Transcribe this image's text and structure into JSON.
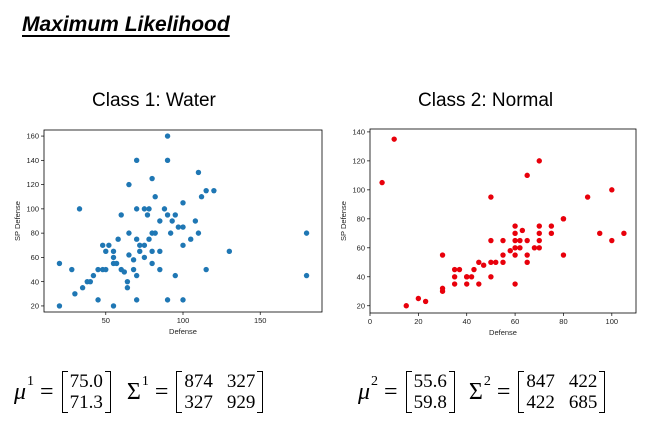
{
  "header": {
    "title": "Maximum Likelihood"
  },
  "chart_data": [
    {
      "type": "scatter",
      "title": "Class 1: Water",
      "xlabel": "Defense",
      "ylabel": "SP Defense",
      "xlim": [
        10,
        190
      ],
      "ylim": [
        15,
        165
      ],
      "xticks": [
        50,
        100,
        150
      ],
      "yticks": [
        20,
        40,
        60,
        80,
        100,
        120,
        140,
        160
      ],
      "color": "#1f77b4",
      "points": [
        [
          20,
          55
        ],
        [
          20,
          20
        ],
        [
          28,
          50
        ],
        [
          30,
          30
        ],
        [
          33,
          100
        ],
        [
          35,
          35
        ],
        [
          38,
          40
        ],
        [
          40,
          40
        ],
        [
          42,
          45
        ],
        [
          45,
          25
        ],
        [
          45,
          50
        ],
        [
          48,
          50
        ],
        [
          48,
          70
        ],
        [
          50,
          50
        ],
        [
          50,
          65
        ],
        [
          52,
          70
        ],
        [
          55,
          55
        ],
        [
          55,
          60
        ],
        [
          55,
          65
        ],
        [
          55,
          20
        ],
        [
          57,
          55
        ],
        [
          58,
          75
        ],
        [
          60,
          50
        ],
        [
          60,
          95
        ],
        [
          62,
          48
        ],
        [
          64,
          40
        ],
        [
          64,
          35
        ],
        [
          65,
          120
        ],
        [
          65,
          80
        ],
        [
          65,
          62
        ],
        [
          68,
          58
        ],
        [
          68,
          50
        ],
        [
          70,
          140
        ],
        [
          70,
          45
        ],
        [
          70,
          100
        ],
        [
          70,
          75
        ],
        [
          70,
          25
        ],
        [
          72,
          65
        ],
        [
          72,
          70
        ],
        [
          75,
          100
        ],
        [
          75,
          70
        ],
        [
          75,
          60
        ],
        [
          77,
          95
        ],
        [
          78,
          100
        ],
        [
          78,
          75
        ],
        [
          80,
          125
        ],
        [
          80,
          80
        ],
        [
          80,
          65
        ],
        [
          80,
          55
        ],
        [
          82,
          110
        ],
        [
          82,
          80
        ],
        [
          85,
          90
        ],
        [
          85,
          65
        ],
        [
          85,
          50
        ],
        [
          88,
          100
        ],
        [
          90,
          160
        ],
        [
          90,
          140
        ],
        [
          90,
          95
        ],
        [
          90,
          25
        ],
        [
          92,
          80
        ],
        [
          93,
          90
        ],
        [
          95,
          95
        ],
        [
          95,
          45
        ],
        [
          97,
          85
        ],
        [
          100,
          105
        ],
        [
          100,
          85
        ],
        [
          100,
          70
        ],
        [
          100,
          25
        ],
        [
          105,
          75
        ],
        [
          108,
          90
        ],
        [
          110,
          130
        ],
        [
          110,
          80
        ],
        [
          112,
          110
        ],
        [
          115,
          115
        ],
        [
          115,
          50
        ],
        [
          120,
          115
        ],
        [
          130,
          65
        ],
        [
          180,
          80
        ],
        [
          180,
          45
        ]
      ]
    },
    {
      "type": "scatter",
      "title": "Class 2: Normal",
      "xlabel": "Defense",
      "ylabel": "SP Defense",
      "xlim": [
        0,
        110
      ],
      "ylim": [
        15,
        142
      ],
      "xticks": [
        0,
        20,
        40,
        60,
        80,
        100
      ],
      "yticks": [
        20,
        40,
        60,
        80,
        100,
        120,
        140
      ],
      "color": "#e8000b",
      "points": [
        [
          5,
          105
        ],
        [
          10,
          135
        ],
        [
          15,
          20
        ],
        [
          20,
          25
        ],
        [
          23,
          23
        ],
        [
          30,
          55
        ],
        [
          30,
          30
        ],
        [
          30,
          32
        ],
        [
          35,
          45
        ],
        [
          35,
          40
        ],
        [
          35,
          35
        ],
        [
          37,
          45
        ],
        [
          40,
          40
        ],
        [
          40,
          35
        ],
        [
          40,
          40
        ],
        [
          42,
          40
        ],
        [
          43,
          45
        ],
        [
          45,
          50
        ],
        [
          45,
          35
        ],
        [
          47,
          48
        ],
        [
          50,
          95
        ],
        [
          50,
          65
        ],
        [
          50,
          50
        ],
        [
          50,
          40
        ],
        [
          52,
          50
        ],
        [
          55,
          50
        ],
        [
          55,
          55
        ],
        [
          55,
          65
        ],
        [
          58,
          58
        ],
        [
          60,
          75
        ],
        [
          60,
          70
        ],
        [
          60,
          65
        ],
        [
          60,
          60
        ],
        [
          60,
          55
        ],
        [
          60,
          35
        ],
        [
          62,
          65
        ],
        [
          62,
          60
        ],
        [
          63,
          72
        ],
        [
          65,
          65
        ],
        [
          65,
          55
        ],
        [
          65,
          50
        ],
        [
          65,
          110
        ],
        [
          68,
          60
        ],
        [
          70,
          120
        ],
        [
          70,
          75
        ],
        [
          70,
          70
        ],
        [
          70,
          65
        ],
        [
          70,
          60
        ],
        [
          75,
          75
        ],
        [
          75,
          70
        ],
        [
          80,
          80
        ],
        [
          80,
          80
        ],
        [
          80,
          55
        ],
        [
          90,
          95
        ],
        [
          95,
          70
        ],
        [
          100,
          100
        ],
        [
          100,
          65
        ],
        [
          105,
          70
        ]
      ]
    }
  ],
  "equations": {
    "class1": {
      "mu_symbol": "μ",
      "mu_sup": "1",
      "equals": "=",
      "mu": [
        "75.0",
        "71.3"
      ],
      "sigma_symbol": "Σ",
      "sigma_sup": "1",
      "sigma": [
        "874",
        "327",
        "327",
        "929"
      ]
    },
    "class2": {
      "mu_symbol": "μ",
      "mu_sup": "2",
      "equals": "=",
      "mu": [
        "55.6",
        "59.8"
      ],
      "sigma_symbol": "Σ",
      "sigma_sup": "2",
      "sigma": [
        "847",
        "422",
        "422",
        "685"
      ]
    }
  }
}
